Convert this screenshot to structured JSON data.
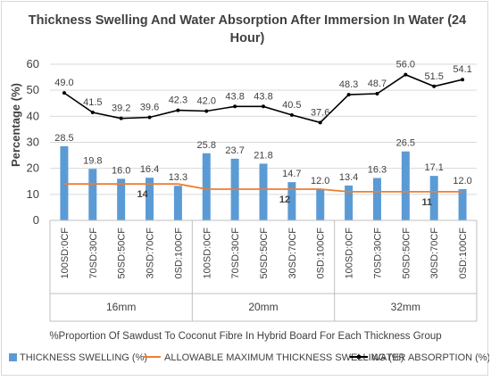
{
  "chart_data": {
    "type": "bar+line",
    "title": "Thickness Swelling And Water Absorption After Immersion In Water (24 Hour)",
    "title_lines": [
      "Thickness Swelling And Water Absorption After Immersion In Water (24",
      "Hour)"
    ],
    "ylabel": "Percentage (%)",
    "xlabel": "%Proportion Of Sawdust To Coconut Fibre In Hybrid Board For Each Thickness Group",
    "ylim": [
      0,
      60
    ],
    "yticks": [
      "0",
      "10",
      "20",
      "30",
      "40",
      "50",
      "60"
    ],
    "grid": true,
    "legend_position": "bottom",
    "groups": [
      "16mm",
      "20mm",
      "32mm"
    ],
    "categories": [
      "100SD:0CF",
      "70SD:30CF",
      "50SD:50CF",
      "30SD:70CF",
      "0SD:100CF",
      "100SD:0CF",
      "70SD:30CF",
      "50SD:50CF",
      "30SD:70CF",
      "0SD:100CF",
      "100SD:0CF",
      "70SD:30CF",
      "50SD:50CF",
      "30SD:70CF",
      "0SD:100CF"
    ],
    "series": [
      {
        "name": "THICKNESS SWELLING (%)",
        "kind": "bar",
        "color": "#5b9bd5",
        "values": [
          28.5,
          19.8,
          16.0,
          16.4,
          13.3,
          25.8,
          23.7,
          21.8,
          14.7,
          12.0,
          13.4,
          16.3,
          26.5,
          17.1,
          12.0
        ],
        "labels": [
          "28.5",
          "19.8",
          "16.0",
          "16.4",
          "13.3",
          "25.8",
          "23.7",
          "21.8",
          "14.7",
          "12.0",
          "13.4",
          "16.3",
          "26.5",
          "17.1",
          "12.0"
        ]
      },
      {
        "name": "ALLOWABLE MAXIMUM THICKNESS SWELLING (%)",
        "kind": "line",
        "color": "#ed7d31",
        "values": [
          14,
          14,
          14,
          14,
          14,
          12,
          12,
          12,
          12,
          12,
          11,
          11,
          11,
          11,
          11
        ],
        "annotations": [
          {
            "index": 2,
            "text": "14"
          },
          {
            "index": 7,
            "text": "12"
          },
          {
            "index": 12,
            "text": "11"
          }
        ]
      },
      {
        "name": "WATER ABSORPTION (%)",
        "kind": "line",
        "color": "#000000",
        "values": [
          49.0,
          41.5,
          39.2,
          39.6,
          42.3,
          42.0,
          43.8,
          43.8,
          40.5,
          37.6,
          48.3,
          48.7,
          56.0,
          51.5,
          54.1
        ],
        "labels": [
          "49.0",
          "41.5",
          "39.2",
          "39.6",
          "42.3",
          "42.0",
          "43.8",
          "43.8",
          "40.5",
          "37.6",
          "48.3",
          "48.7",
          "56.0",
          "51.5",
          "54.1"
        ]
      }
    ]
  }
}
